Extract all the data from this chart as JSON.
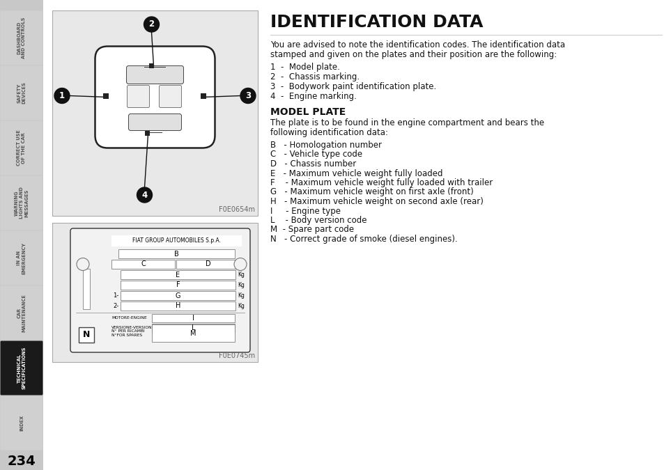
{
  "page_bg": "#ffffff",
  "sidebar_active_bg": "#1a1a1a",
  "sidebar_active_text": "#ffffff",
  "sidebar_inactive_bg": "#d0d0d0",
  "sidebar_inactive_text": "#555555",
  "sidebar_tabs": [
    {
      "label": "DASHBOARD\nAND CONTROLS",
      "active": false
    },
    {
      "label": "SAFETY\nDEVICES",
      "active": false
    },
    {
      "label": "CORRECT USE\nOF THE CAR",
      "active": false
    },
    {
      "label": "WARNING\nLIGHTS AND\nMESSAGES",
      "active": false
    },
    {
      "label": "IN AN\nEMERGENCY",
      "active": false
    },
    {
      "label": "CAR\nMAINTENANCE",
      "active": false
    },
    {
      "label": "TECHNICAL\nSPECIFICATIONS",
      "active": true
    },
    {
      "label": "INDEX",
      "active": false
    }
  ],
  "page_number": "234",
  "title": "IDENTIFICATION DATA",
  "intro_text": "You are advised to note the identification codes. The identification data\nstamped and given on the plates and their position are the following:",
  "list_items": [
    "1  -  Model plate.",
    "2  -  Chassis marking.",
    "3  -  Bodywork paint identification plate.",
    "4  -  Engine marking."
  ],
  "section2_title": "MODEL PLATE",
  "section2_intro": "The plate is to be found in the engine compartment and bears the\nfollowing identification data:",
  "section2_items": [
    "B   - Homologation number",
    "C   - Vehicle type code",
    "D   - Chassis number",
    "E   - Maximum vehicle weight fully loaded",
    "F    - Maximum vehicle weight fully loaded with trailer",
    "G   - Maximum vehicle weight on first axle (front)",
    "H   - Maximum vehicle weight on second axle (rear)",
    "I     - Engine type",
    "L    - Body version code",
    "M  - Spare part code",
    "N   - Correct grade of smoke (diesel engines)."
  ],
  "fig1_caption": "F0E0654m",
  "fig2_caption": "F0E0745m",
  "plate_header": "FIAT GROUP AUTOMOBILES S.p.A."
}
